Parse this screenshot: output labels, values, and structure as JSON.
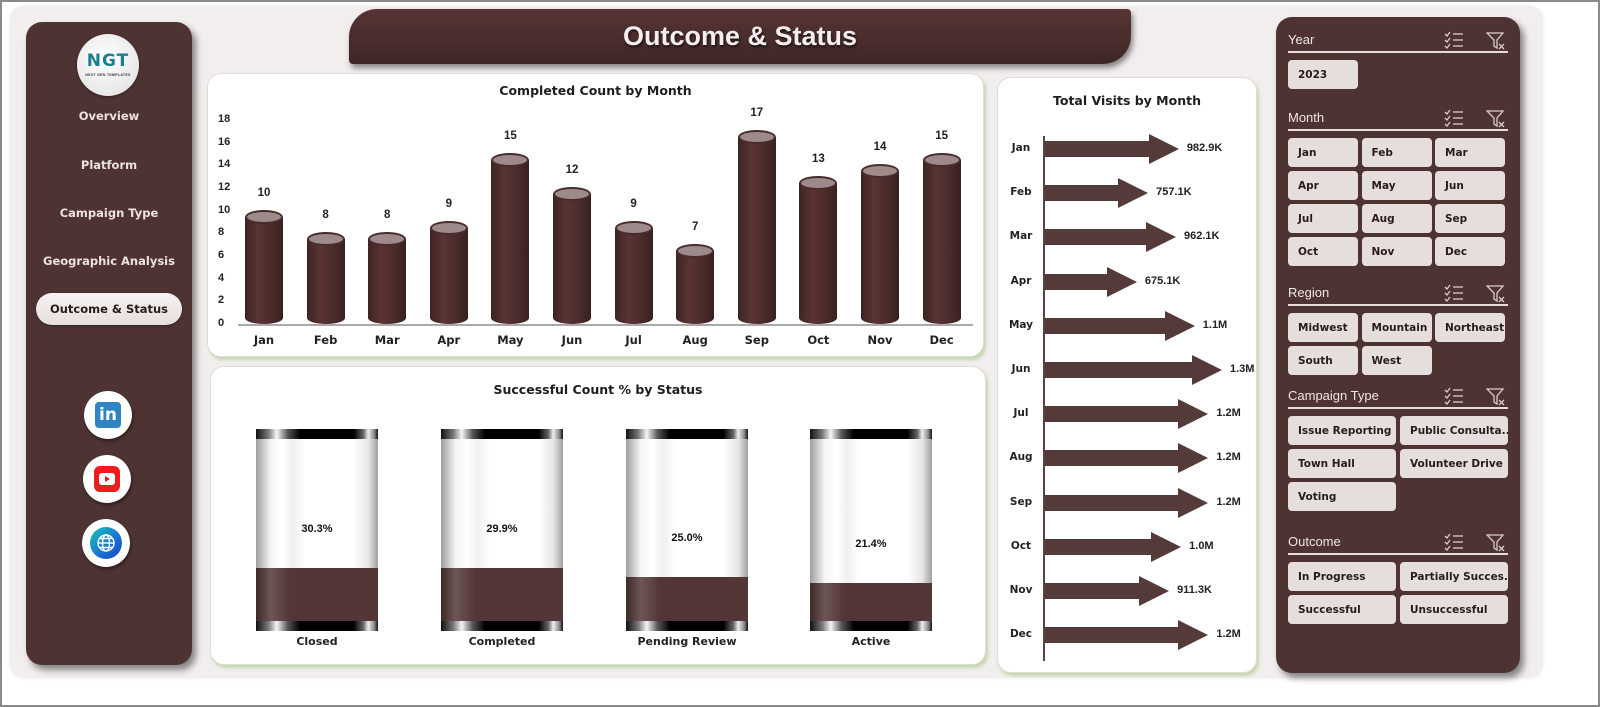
{
  "page": {
    "title": "Outcome & Status"
  },
  "nav": {
    "logo_text": "NGT",
    "logo_sub": "NEXT GEN TEMPLATES",
    "items": [
      {
        "label": "Overview",
        "active": false
      },
      {
        "label": "Platform",
        "active": false
      },
      {
        "label": "Campaign Type",
        "active": false
      },
      {
        "label": "Geographic Analysis",
        "active": false
      },
      {
        "label": "Outcome & Status",
        "active": true
      }
    ],
    "social": [
      "linkedin-icon",
      "youtube-icon",
      "globe-icon"
    ]
  },
  "colors": {
    "primary": "#4e3333",
    "chip_bg": "#e6dedd",
    "canvas_bg": "#f1eeed",
    "card_shadow": "#c6d6ae"
  },
  "charts": {
    "completed": {
      "title": "Completed Count  by Month"
    },
    "status": {
      "title": "Successful  Count  % by Status"
    },
    "visits": {
      "title": "Total Visits by Month"
    }
  },
  "chart_data": [
    {
      "type": "bar",
      "title": "Completed Count  by Month",
      "categories": [
        "Jan",
        "Feb",
        "Mar",
        "Apr",
        "May",
        "Jun",
        "Jul",
        "Aug",
        "Sep",
        "Oct",
        "Nov",
        "Dec"
      ],
      "values": [
        10,
        8,
        8,
        9,
        15,
        12,
        9,
        7,
        17,
        13,
        14,
        15
      ],
      "yticks": [
        0,
        2,
        4,
        6,
        8,
        10,
        12,
        14,
        16,
        18
      ],
      "ylim": [
        0,
        18
      ],
      "xlabel": "",
      "ylabel": "",
      "grid": false,
      "style": "cylinder"
    },
    {
      "type": "bar",
      "title": "Successful  Count  % by Status",
      "categories": [
        "Closed",
        "Completed",
        "Pending Review",
        "Active"
      ],
      "values": [
        30.3,
        29.9,
        25.0,
        21.4
      ],
      "labels": [
        "30.3%",
        "29.9%",
        "25.0%",
        "21.4%"
      ],
      "unit": "%",
      "style": "filled-cylinder"
    },
    {
      "type": "bar",
      "orientation": "horizontal",
      "title": "Total Visits by Month",
      "categories": [
        "Jan",
        "Feb",
        "Mar",
        "Apr",
        "May",
        "Jun",
        "Jul",
        "Aug",
        "Sep",
        "Oct",
        "Nov",
        "Dec"
      ],
      "values": [
        982900,
        757100,
        962100,
        675100,
        1100000,
        1300000,
        1200000,
        1200000,
        1200000,
        1000000,
        911300,
        1200000
      ],
      "labels": [
        "982.9K",
        "757.1K",
        "962.1K",
        "675.1K",
        "1.1M",
        "1.3M",
        "1.2M",
        "1.2M",
        "1.2M",
        "1.0M",
        "911.3K",
        "1.2M"
      ],
      "style": "arrow"
    }
  ],
  "filters": {
    "year": {
      "title": "Year",
      "options": [
        "2023"
      ]
    },
    "month": {
      "title": "Month",
      "options": [
        "Jan",
        "Feb",
        "Mar",
        "Apr",
        "May",
        "Jun",
        "Jul",
        "Aug",
        "Sep",
        "Oct",
        "Nov",
        "Dec"
      ]
    },
    "region": {
      "title": "Region",
      "options": [
        "Midwest",
        "Mountain",
        "Northeast",
        "South",
        "West"
      ]
    },
    "campaign_type": {
      "title": "Campaign Type",
      "options": [
        "Issue Reporting",
        "Public Consulta...",
        "Town Hall",
        "Volunteer Drive",
        "Voting"
      ]
    },
    "outcome": {
      "title": "Outcome",
      "options": [
        "In Progress",
        "Partially Succes...",
        "Successful",
        "Unsuccessful"
      ]
    }
  }
}
